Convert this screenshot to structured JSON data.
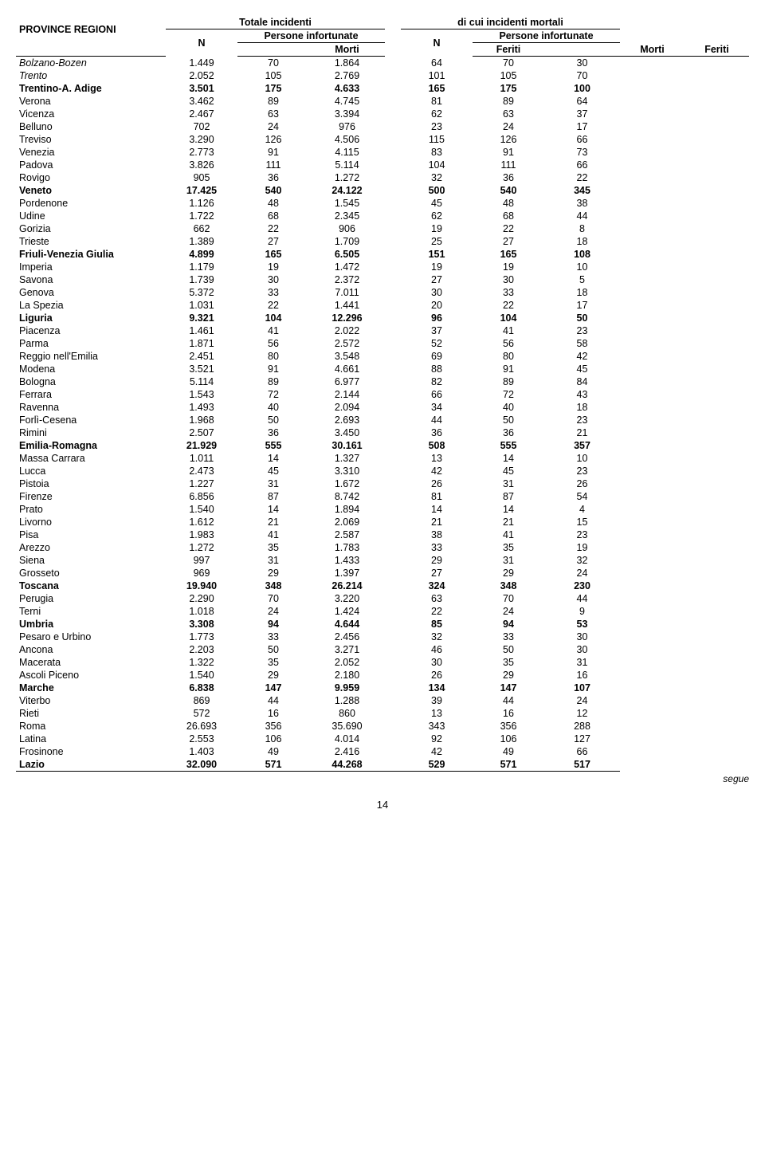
{
  "headers": {
    "province": "PROVINCE REGIONI",
    "totale": "Totale incidenti",
    "dicui": "di cui incidenti mortali",
    "N": "N",
    "persone": "Persone infortunate",
    "morti": "Morti",
    "feriti": "Feriti"
  },
  "segue": "segue",
  "pageNumber": "14",
  "rows": [
    {
      "label": "Bolzano-Bozen",
      "style": "italic",
      "n1": "1.449",
      "m1": "70",
      "f1": "1.864",
      "n2": "64",
      "m2": "70",
      "f2": "30"
    },
    {
      "label": "Trento",
      "style": "italic",
      "n1": "2.052",
      "m1": "105",
      "f1": "2.769",
      "n2": "101",
      "m2": "105",
      "f2": "70"
    },
    {
      "label": "Trentino-A. Adige",
      "style": "bold",
      "n1": "3.501",
      "m1": "175",
      "f1": "4.633",
      "n2": "165",
      "m2": "175",
      "f2": "100"
    },
    {
      "label": "Verona",
      "style": "",
      "n1": "3.462",
      "m1": "89",
      "f1": "4.745",
      "n2": "81",
      "m2": "89",
      "f2": "64"
    },
    {
      "label": "Vicenza",
      "style": "",
      "n1": "2.467",
      "m1": "63",
      "f1": "3.394",
      "n2": "62",
      "m2": "63",
      "f2": "37"
    },
    {
      "label": "Belluno",
      "style": "",
      "n1": "702",
      "m1": "24",
      "f1": "976",
      "n2": "23",
      "m2": "24",
      "f2": "17"
    },
    {
      "label": "Treviso",
      "style": "",
      "n1": "3.290",
      "m1": "126",
      "f1": "4.506",
      "n2": "115",
      "m2": "126",
      "f2": "66"
    },
    {
      "label": "Venezia",
      "style": "",
      "n1": "2.773",
      "m1": "91",
      "f1": "4.115",
      "n2": "83",
      "m2": "91",
      "f2": "73"
    },
    {
      "label": "Padova",
      "style": "",
      "n1": "3.826",
      "m1": "111",
      "f1": "5.114",
      "n2": "104",
      "m2": "111",
      "f2": "66"
    },
    {
      "label": "Rovigo",
      "style": "",
      "n1": "905",
      "m1": "36",
      "f1": "1.272",
      "n2": "32",
      "m2": "36",
      "f2": "22"
    },
    {
      "label": "Veneto",
      "style": "bold",
      "n1": "17.425",
      "m1": "540",
      "f1": "24.122",
      "n2": "500",
      "m2": "540",
      "f2": "345"
    },
    {
      "label": "Pordenone",
      "style": "",
      "n1": "1.126",
      "m1": "48",
      "f1": "1.545",
      "n2": "45",
      "m2": "48",
      "f2": "38"
    },
    {
      "label": "Udine",
      "style": "",
      "n1": "1.722",
      "m1": "68",
      "f1": "2.345",
      "n2": "62",
      "m2": "68",
      "f2": "44"
    },
    {
      "label": "Gorizia",
      "style": "",
      "n1": "662",
      "m1": "22",
      "f1": "906",
      "n2": "19",
      "m2": "22",
      "f2": "8"
    },
    {
      "label": "Trieste",
      "style": "",
      "n1": "1.389",
      "m1": "27",
      "f1": "1.709",
      "n2": "25",
      "m2": "27",
      "f2": "18"
    },
    {
      "label": "Friuli-Venezia Giulia",
      "style": "bold",
      "n1": "4.899",
      "m1": "165",
      "f1": "6.505",
      "n2": "151",
      "m2": "165",
      "f2": "108"
    },
    {
      "label": "Imperia",
      "style": "",
      "n1": "1.179",
      "m1": "19",
      "f1": "1.472",
      "n2": "19",
      "m2": "19",
      "f2": "10"
    },
    {
      "label": "Savona",
      "style": "",
      "n1": "1.739",
      "m1": "30",
      "f1": "2.372",
      "n2": "27",
      "m2": "30",
      "f2": "5"
    },
    {
      "label": "Genova",
      "style": "",
      "n1": "5.372",
      "m1": "33",
      "f1": "7.011",
      "n2": "30",
      "m2": "33",
      "f2": "18"
    },
    {
      "label": "La Spezia",
      "style": "",
      "n1": "1.031",
      "m1": "22",
      "f1": "1.441",
      "n2": "20",
      "m2": "22",
      "f2": "17"
    },
    {
      "label": "Liguria",
      "style": "bold",
      "n1": "9.321",
      "m1": "104",
      "f1": "12.296",
      "n2": "96",
      "m2": "104",
      "f2": "50"
    },
    {
      "label": "Piacenza",
      "style": "",
      "n1": "1.461",
      "m1": "41",
      "f1": "2.022",
      "n2": "37",
      "m2": "41",
      "f2": "23"
    },
    {
      "label": "Parma",
      "style": "",
      "n1": "1.871",
      "m1": "56",
      "f1": "2.572",
      "n2": "52",
      "m2": "56",
      "f2": "58"
    },
    {
      "label": "Reggio nell'Emilia",
      "style": "",
      "n1": "2.451",
      "m1": "80",
      "f1": "3.548",
      "n2": "69",
      "m2": "80",
      "f2": "42"
    },
    {
      "label": "Modena",
      "style": "",
      "n1": "3.521",
      "m1": "91",
      "f1": "4.661",
      "n2": "88",
      "m2": "91",
      "f2": "45"
    },
    {
      "label": "Bologna",
      "style": "",
      "n1": "5.114",
      "m1": "89",
      "f1": "6.977",
      "n2": "82",
      "m2": "89",
      "f2": "84"
    },
    {
      "label": "Ferrara",
      "style": "",
      "n1": "1.543",
      "m1": "72",
      "f1": "2.144",
      "n2": "66",
      "m2": "72",
      "f2": "43"
    },
    {
      "label": "Ravenna",
      "style": "",
      "n1": "1.493",
      "m1": "40",
      "f1": "2.094",
      "n2": "34",
      "m2": "40",
      "f2": "18"
    },
    {
      "label": "Forlì-Cesena",
      "style": "",
      "n1": "1.968",
      "m1": "50",
      "f1": "2.693",
      "n2": "44",
      "m2": "50",
      "f2": "23"
    },
    {
      "label": "Rimini",
      "style": "",
      "n1": "2.507",
      "m1": "36",
      "f1": "3.450",
      "n2": "36",
      "m2": "36",
      "f2": "21"
    },
    {
      "label": "Emilia-Romagna",
      "style": "bold",
      "n1": "21.929",
      "m1": "555",
      "f1": "30.161",
      "n2": "508",
      "m2": "555",
      "f2": "357"
    },
    {
      "label": "Massa Carrara",
      "style": "",
      "n1": "1.011",
      "m1": "14",
      "f1": "1.327",
      "n2": "13",
      "m2": "14",
      "f2": "10"
    },
    {
      "label": "Lucca",
      "style": "",
      "n1": "2.473",
      "m1": "45",
      "f1": "3.310",
      "n2": "42",
      "m2": "45",
      "f2": "23"
    },
    {
      "label": "Pistoia",
      "style": "",
      "n1": "1.227",
      "m1": "31",
      "f1": "1.672",
      "n2": "26",
      "m2": "31",
      "f2": "26"
    },
    {
      "label": "Firenze",
      "style": "",
      "n1": "6.856",
      "m1": "87",
      "f1": "8.742",
      "n2": "81",
      "m2": "87",
      "f2": "54"
    },
    {
      "label": "Prato",
      "style": "",
      "n1": "1.540",
      "m1": "14",
      "f1": "1.894",
      "n2": "14",
      "m2": "14",
      "f2": "4"
    },
    {
      "label": "Livorno",
      "style": "",
      "n1": "1.612",
      "m1": "21",
      "f1": "2.069",
      "n2": "21",
      "m2": "21",
      "f2": "15"
    },
    {
      "label": "Pisa",
      "style": "",
      "n1": "1.983",
      "m1": "41",
      "f1": "2.587",
      "n2": "38",
      "m2": "41",
      "f2": "23"
    },
    {
      "label": "Arezzo",
      "style": "",
      "n1": "1.272",
      "m1": "35",
      "f1": "1.783",
      "n2": "33",
      "m2": "35",
      "f2": "19"
    },
    {
      "label": "Siena",
      "style": "",
      "n1": "997",
      "m1": "31",
      "f1": "1.433",
      "n2": "29",
      "m2": "31",
      "f2": "32"
    },
    {
      "label": "Grosseto",
      "style": "",
      "n1": "969",
      "m1": "29",
      "f1": "1.397",
      "n2": "27",
      "m2": "29",
      "f2": "24"
    },
    {
      "label": "Toscana",
      "style": "bold",
      "n1": "19.940",
      "m1": "348",
      "f1": "26.214",
      "n2": "324",
      "m2": "348",
      "f2": "230"
    },
    {
      "label": "Perugia",
      "style": "",
      "n1": "2.290",
      "m1": "70",
      "f1": "3.220",
      "n2": "63",
      "m2": "70",
      "f2": "44"
    },
    {
      "label": "Terni",
      "style": "",
      "n1": "1.018",
      "m1": "24",
      "f1": "1.424",
      "n2": "22",
      "m2": "24",
      "f2": "9"
    },
    {
      "label": "Umbria",
      "style": "bold",
      "n1": "3.308",
      "m1": "94",
      "f1": "4.644",
      "n2": "85",
      "m2": "94",
      "f2": "53"
    },
    {
      "label": "Pesaro e Urbino",
      "style": "",
      "n1": "1.773",
      "m1": "33",
      "f1": "2.456",
      "n2": "32",
      "m2": "33",
      "f2": "30"
    },
    {
      "label": "Ancona",
      "style": "",
      "n1": "2.203",
      "m1": "50",
      "f1": "3.271",
      "n2": "46",
      "m2": "50",
      "f2": "30"
    },
    {
      "label": "Macerata",
      "style": "",
      "n1": "1.322",
      "m1": "35",
      "f1": "2.052",
      "n2": "30",
      "m2": "35",
      "f2": "31"
    },
    {
      "label": "Ascoli Piceno",
      "style": "",
      "n1": "1.540",
      "m1": "29",
      "f1": "2.180",
      "n2": "26",
      "m2": "29",
      "f2": "16"
    },
    {
      "label": "Marche",
      "style": "bold",
      "n1": "6.838",
      "m1": "147",
      "f1": "9.959",
      "n2": "134",
      "m2": "147",
      "f2": "107"
    },
    {
      "label": "Viterbo",
      "style": "",
      "n1": "869",
      "m1": "44",
      "f1": "1.288",
      "n2": "39",
      "m2": "44",
      "f2": "24"
    },
    {
      "label": "Rieti",
      "style": "",
      "n1": "572",
      "m1": "16",
      "f1": "860",
      "n2": "13",
      "m2": "16",
      "f2": "12"
    },
    {
      "label": "Roma",
      "style": "",
      "n1": "26.693",
      "m1": "356",
      "f1": "35.690",
      "n2": "343",
      "m2": "356",
      "f2": "288"
    },
    {
      "label": "Latina",
      "style": "",
      "n1": "2.553",
      "m1": "106",
      "f1": "4.014",
      "n2": "92",
      "m2": "106",
      "f2": "127"
    },
    {
      "label": "Frosinone",
      "style": "",
      "n1": "1.403",
      "m1": "49",
      "f1": "2.416",
      "n2": "42",
      "m2": "49",
      "f2": "66"
    },
    {
      "label": "Lazio",
      "style": "bold last",
      "n1": "32.090",
      "m1": "571",
      "f1": "44.268",
      "n2": "529",
      "m2": "571",
      "f2": "517"
    }
  ]
}
